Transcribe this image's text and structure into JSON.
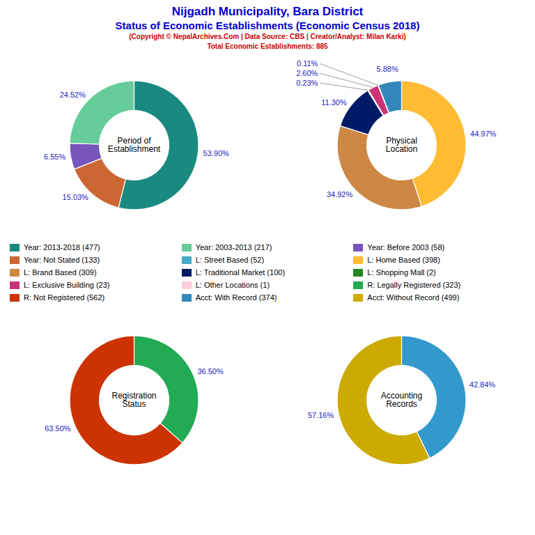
{
  "title": [
    "Nijgadh Municipality, Bara District",
    "Status of Economic Establishments (Economic Census 2018)"
  ],
  "subtitle": [
    "(Copyright © NepalArchives.Com | Data Source: CBS | Creator/Analyst: Milan Karki)",
    "Total Economic Establishments: 885"
  ],
  "chart_data": [
    {
      "type": "donut",
      "title": "Period of\nEstablishment",
      "values": [
        53.9,
        15.03,
        6.55,
        24.52
      ],
      "value_labels": [
        "53.90%",
        "15.03%",
        "6.55%",
        "24.52%"
      ],
      "colors": [
        "#1a8a80",
        "#cc6633",
        "#7755bb",
        "#66cc99"
      ],
      "data_labels": true
    },
    {
      "type": "donut",
      "title": "Physical\nLocation",
      "values": [
        44.97,
        34.92,
        11.3,
        0.23,
        2.6,
        0.11,
        5.88
      ],
      "value_labels": [
        "44.97%",
        "34.92%",
        "11.30%",
        "0.23%",
        "2.60%",
        "0.11%",
        "5.88%"
      ],
      "colors": [
        "#ffbb33",
        "#cc8844",
        "#001a66",
        "#228822",
        "#cc3377",
        "#44aacc",
        "#3388bb"
      ],
      "data_labels": true
    },
    {
      "type": "donut",
      "title": "Registration\nStatus",
      "values": [
        36.5,
        63.5
      ],
      "value_labels": [
        "36.50%",
        "63.50%"
      ],
      "colors": [
        "#22aa55",
        "#cc3300"
      ],
      "data_labels": true
    },
    {
      "type": "donut",
      "title": "Accounting\nRecords",
      "values": [
        42.84,
        57.16
      ],
      "value_labels": [
        "42.84%",
        "57.16%"
      ],
      "colors": [
        "#3399cc",
        "#ccaa00"
      ],
      "data_labels": true
    }
  ],
  "legend_entries": [
    {
      "name": "Year: 2013-2018 (477)",
      "color": "#1a8a80"
    },
    {
      "name": "Year: Not Stated (133)",
      "color": "#cc6633"
    },
    {
      "name": "L: Brand Based (309)",
      "color": "#cc8844"
    },
    {
      "name": "L: Exclusive Building (23)",
      "color": "#cc3377"
    },
    {
      "name": "R: Not Registered (562)",
      "color": "#cc3300"
    },
    {
      "name": "Year: 2003-2013 (217)",
      "color": "#66cc99"
    },
    {
      "name": "L: Street Based (52)",
      "color": "#44aacc"
    },
    {
      "name": "L: Traditional Market (100)",
      "color": "#001a66"
    },
    {
      "name": "L: Other Locations (1)",
      "color": "#ffccdd"
    },
    {
      "name": "Acct: With Record (374)",
      "color": "#3388bb"
    },
    {
      "name": "Year: Before 2003 (58)",
      "color": "#7755bb"
    },
    {
      "name": "L: Home Based (398)",
      "color": "#ffbb33"
    },
    {
      "name": "L: Shopping Mall (2)",
      "color": "#228822"
    },
    {
      "name": "R: Legally Registered (323)",
      "color": "#22aa55"
    },
    {
      "name": "Acct: Without Record (499)",
      "color": "#ccaa00"
    }
  ]
}
